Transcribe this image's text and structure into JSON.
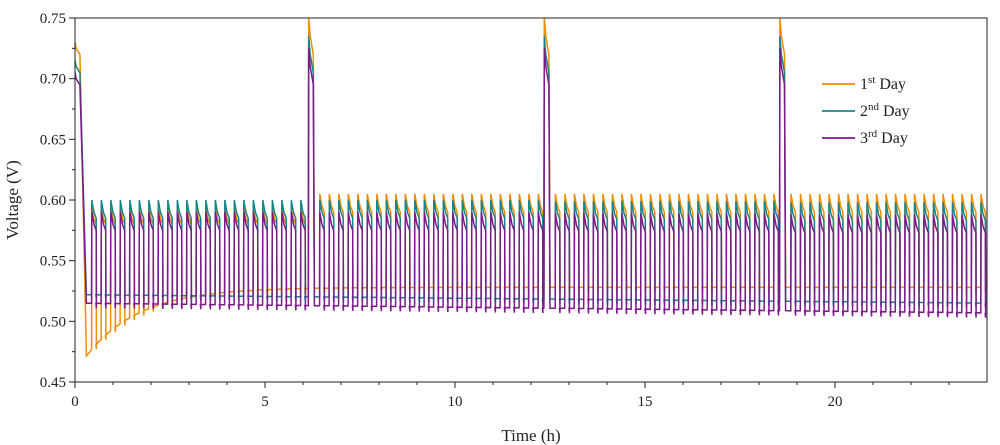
{
  "chart_data": {
    "type": "line",
    "title": "",
    "xlabel": "Time (h)",
    "ylabel": "Voltage (V)",
    "xlim": [
      0,
      24
    ],
    "ylim": [
      0.45,
      0.75
    ],
    "x_ticks": [
      0,
      5,
      10,
      15,
      20
    ],
    "x_tick_labels": [
      "0",
      "5",
      "10",
      "15",
      "20"
    ],
    "y_ticks": [
      0.45,
      0.5,
      0.55,
      0.6,
      0.65,
      0.7,
      0.75
    ],
    "y_tick_labels": [
      "0.45",
      "0.50",
      "0.55",
      "0.60",
      "0.65",
      "0.70",
      "0.75"
    ],
    "grid": false,
    "legend_position": "top-right",
    "pulse_period_h": 0.25,
    "rest_interruptions_h": [
      0.15,
      6.15,
      12.35,
      18.55
    ],
    "series": [
      {
        "name": "1st Day",
        "legend": {
          "base": "1",
          "sup": "st",
          "rest": " Day"
        },
        "color": "#f28c00",
        "peak_voltage": 0.75,
        "plateau_voltage": [
          0.59,
          0.6,
          0.6,
          0.6
        ],
        "baseline_start": 0.465,
        "baseline_end": 0.528
      },
      {
        "name": "2nd Day",
        "legend": {
          "base": "2",
          "sup": "nd",
          "rest": " Day"
        },
        "color": "#17868a",
        "peak_voltage": 0.735,
        "plateau_voltage": [
          0.595,
          0.595,
          0.594,
          0.593
        ],
        "baseline_start": 0.522,
        "baseline_end": 0.515
      },
      {
        "name": "3rd Day",
        "legend": {
          "base": "3",
          "sup": "rd",
          "rest": " Day"
        },
        "color": "#7d1a8c",
        "peak_voltage": 0.725,
        "plateau_voltage": [
          0.585,
          0.585,
          0.584,
          0.583
        ],
        "baseline_start": 0.515,
        "baseline_end": 0.507
      }
    ]
  }
}
